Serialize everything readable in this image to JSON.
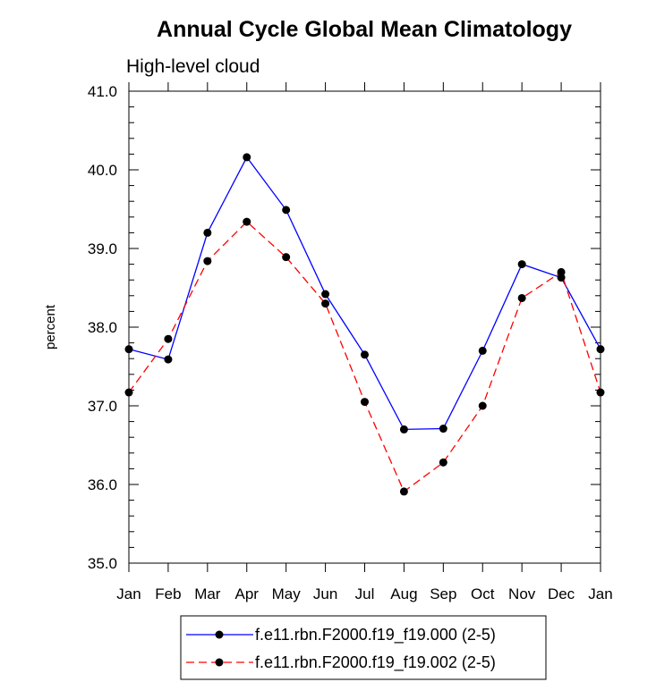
{
  "chart_data": {
    "type": "line",
    "title": "Annual Cycle Global Mean Climatology",
    "subtitle": "High-level cloud",
    "xlabel": "",
    "ylabel": "percent",
    "categories": [
      "Jan",
      "Feb",
      "Mar",
      "Apr",
      "May",
      "Jun",
      "Jul",
      "Aug",
      "Sep",
      "Oct",
      "Nov",
      "Dec",
      "Jan"
    ],
    "ylim": [
      35.0,
      41.0
    ],
    "yticks": [
      "35.0",
      "36.0",
      "37.0",
      "38.0",
      "39.0",
      "40.0",
      "41.0"
    ],
    "grid": false,
    "legend_position": "bottom-center",
    "series": [
      {
        "name": "f.e11.rbn.F2000.f19_f19.000 (2-5)",
        "color": "#0000ff",
        "dash": "solid",
        "values": [
          37.72,
          37.59,
          39.2,
          40.16,
          39.49,
          38.42,
          37.65,
          36.7,
          36.71,
          37.7,
          38.8,
          38.63,
          37.72
        ]
      },
      {
        "name": "f.e11.rbn.F2000.f19_f19.002 (2-5)",
        "color": "#ff0000",
        "dash": "dashed",
        "values": [
          37.17,
          37.85,
          38.84,
          39.34,
          38.89,
          38.3,
          37.05,
          35.91,
          36.28,
          37.0,
          38.37,
          38.7,
          37.17
        ]
      }
    ]
  }
}
